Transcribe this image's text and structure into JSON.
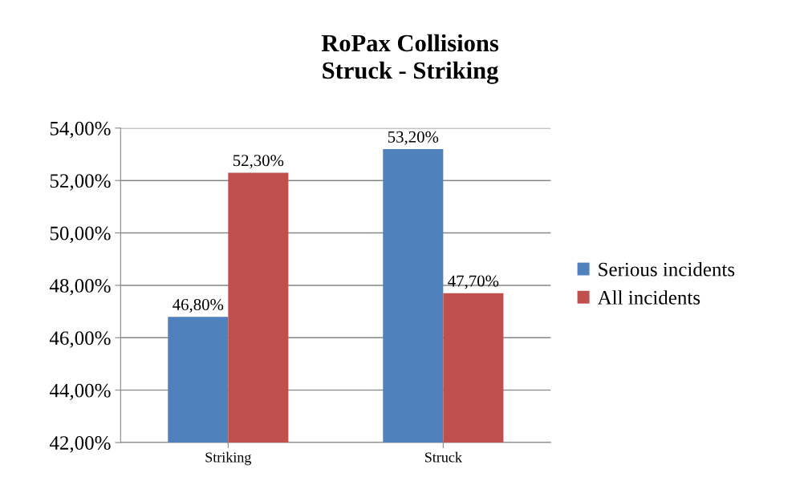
{
  "chart_data": {
    "type": "bar",
    "title": "RoPax Collisions\nStruck - Striking",
    "categories": [
      "Striking",
      "Struck"
    ],
    "series": [
      {
        "name": "Serious incidents",
        "color": "#4f81bd",
        "values": [
          46.8,
          53.2
        ],
        "value_labels": [
          "46,80%",
          "53,20%"
        ]
      },
      {
        "name": "All incidents",
        "color": "#c0504d",
        "values": [
          52.3,
          47.7
        ],
        "value_labels": [
          "52,30%",
          "47,70%"
        ]
      }
    ],
    "ylim": [
      42,
      54
    ],
    "yticks": [
      {
        "value": 42,
        "label": "42,00%"
      },
      {
        "value": 44,
        "label": "44,00%"
      },
      {
        "value": 46,
        "label": "46,00%"
      },
      {
        "value": 48,
        "label": "48,00%"
      },
      {
        "value": 50,
        "label": "50,00%"
      },
      {
        "value": 52,
        "label": "52,00%"
      },
      {
        "value": 54,
        "label": "54,00%"
      }
    ],
    "grid": "y",
    "legend": "right"
  }
}
